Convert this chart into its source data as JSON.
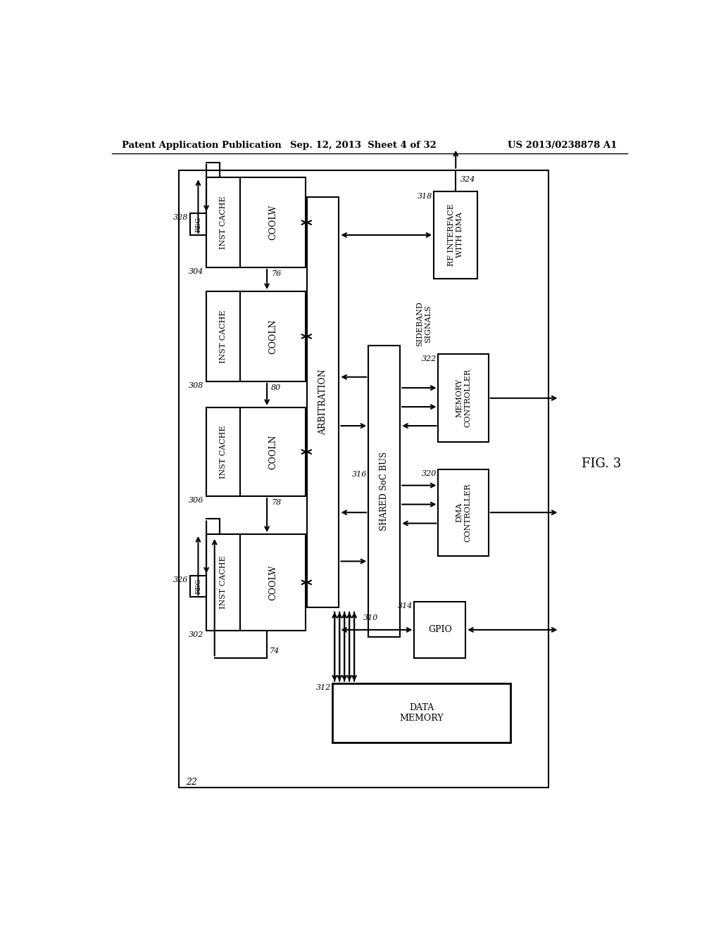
{
  "header_left": "Patent Application Publication",
  "header_center": "Sep. 12, 2013  Sheet 4 of 32",
  "header_right": "US 2013/0238878 A1",
  "fig_label": "FIG. 3",
  "bg_color": "#ffffff"
}
